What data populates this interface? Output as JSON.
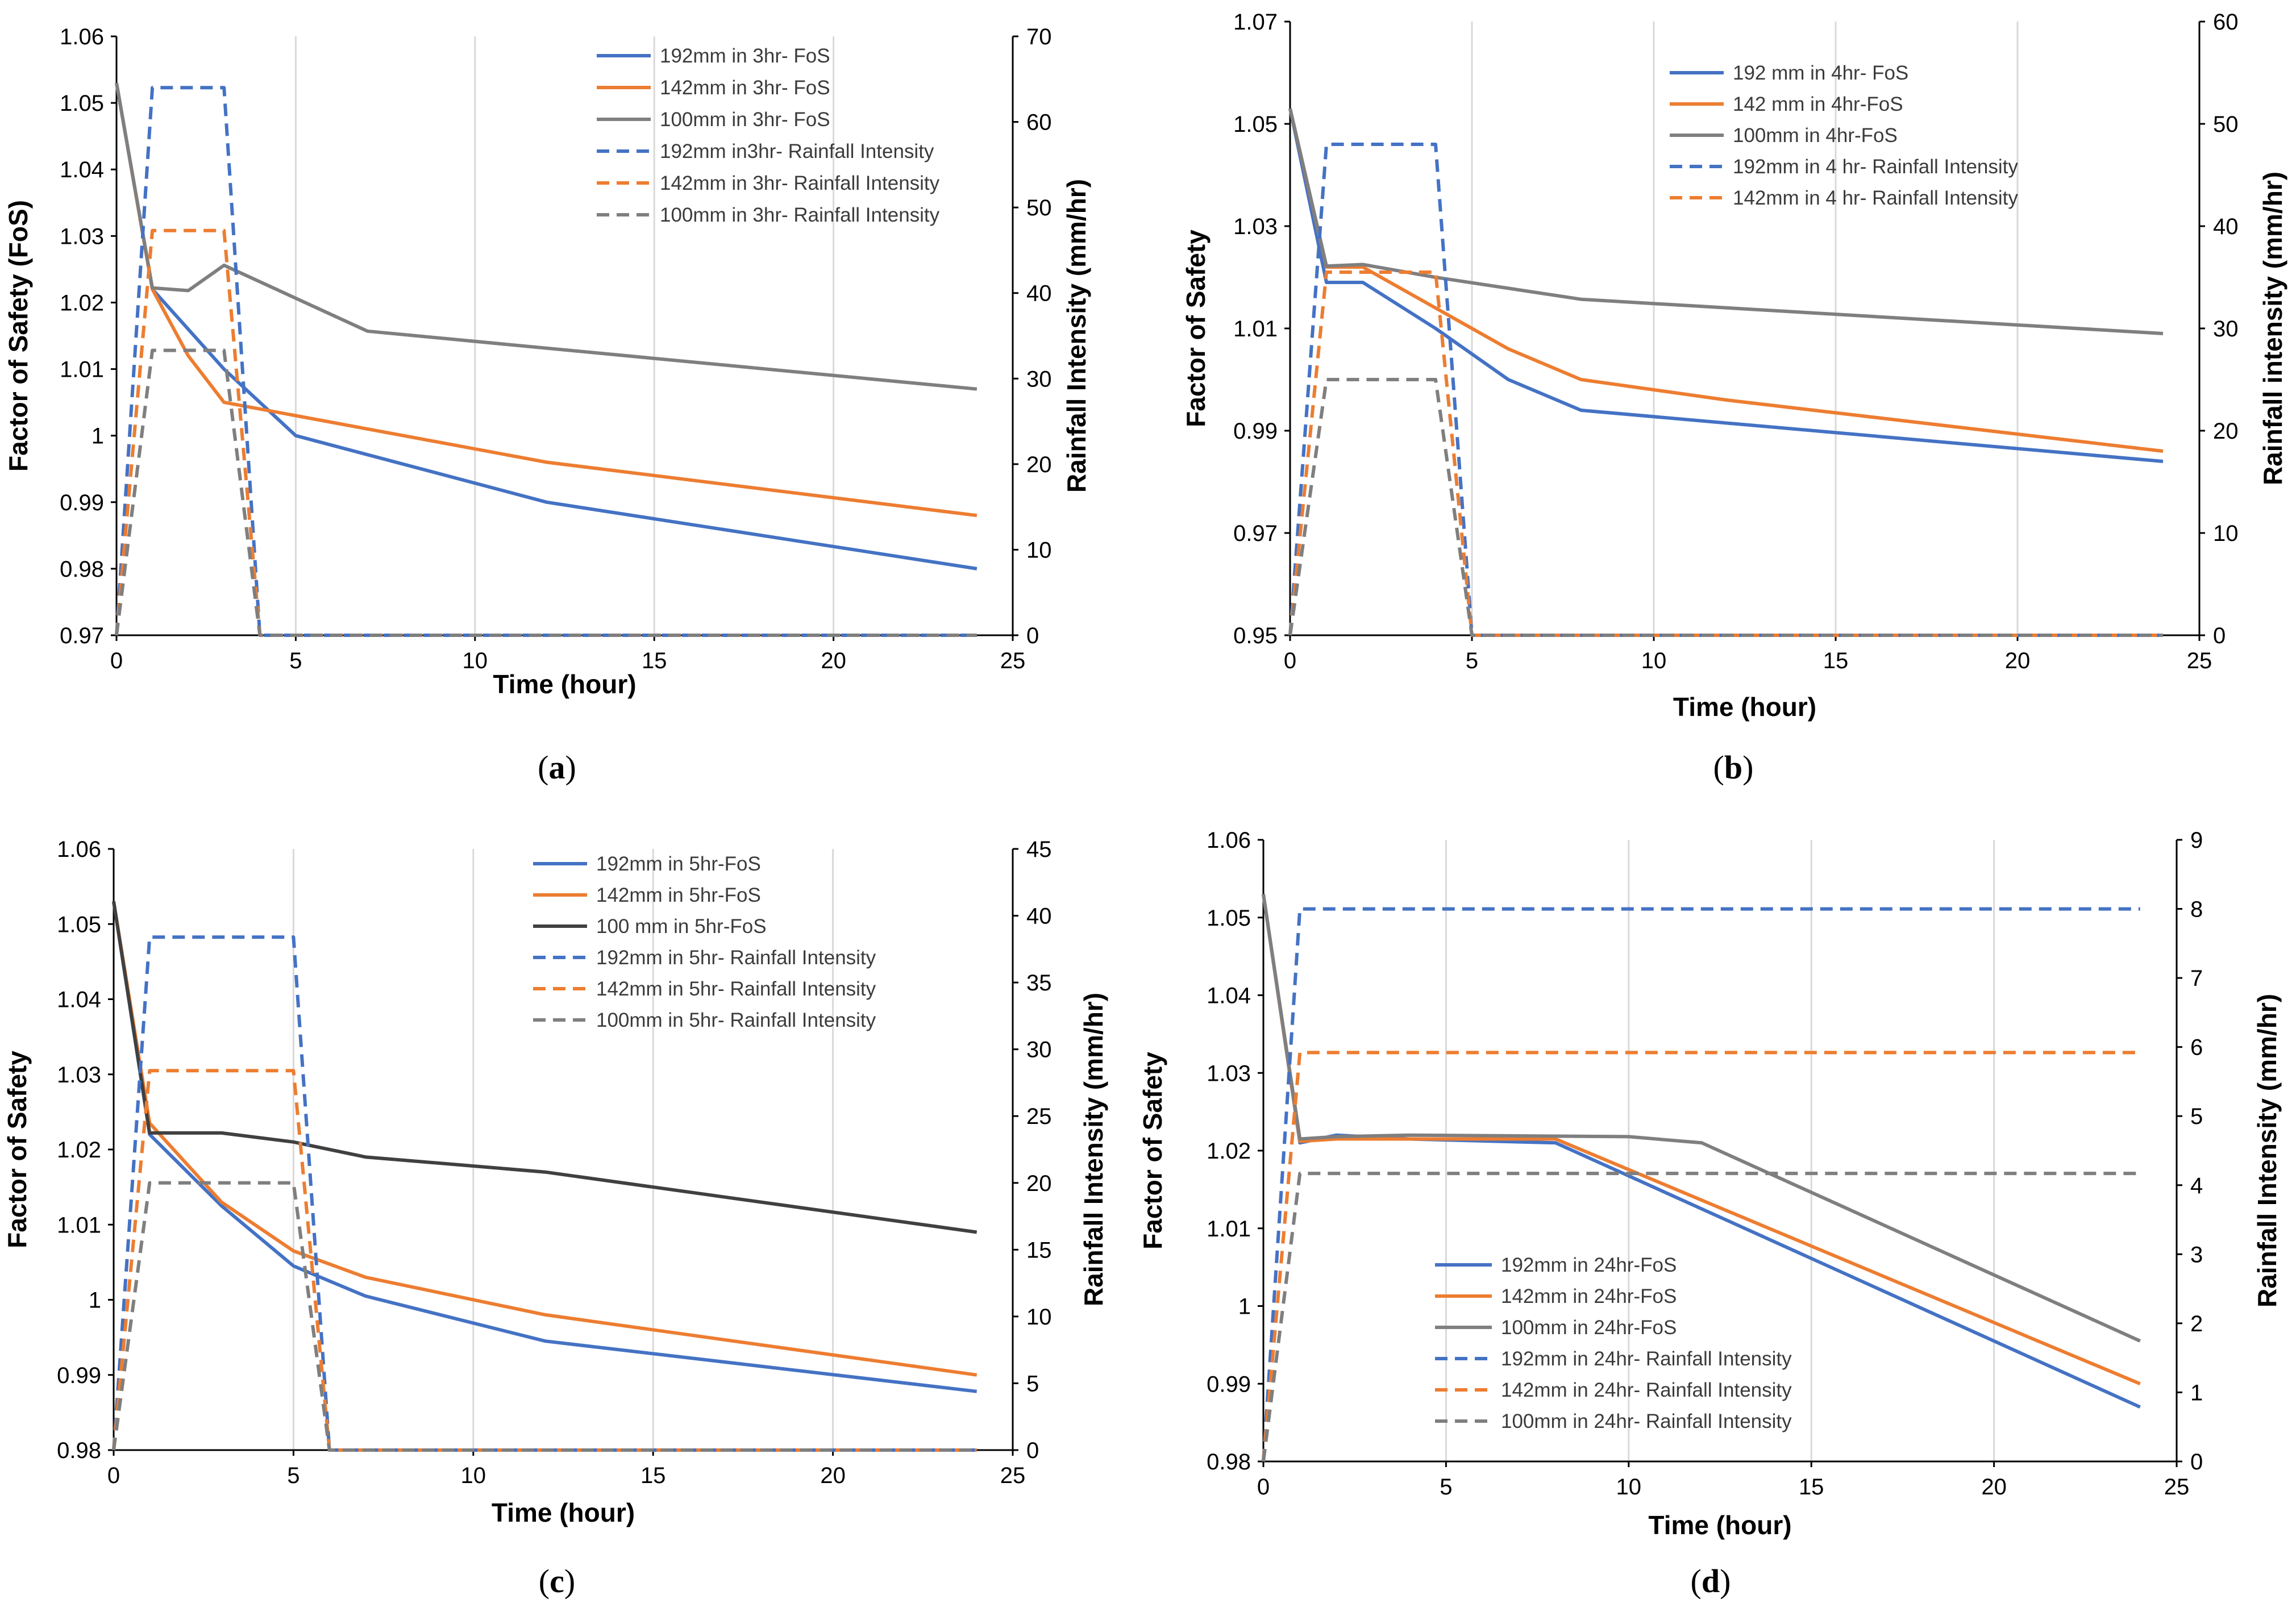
{
  "figure": {
    "panels_note": "Four panels (a)-(d)"
  },
  "colors": {
    "s192": "#4472C4",
    "s142": "#ED7D31",
    "s100": "#7F7F7F",
    "s100_dark": "#404040",
    "grid": "#D9D9D9",
    "axis": "#000000"
  },
  "chart_data": [
    {
      "type": "line",
      "caption_letter": "a",
      "xlabel": "Time (hour)",
      "ylabel": "Factor of Safety (FoS)",
      "y2label": "Rainfall Intensity (mm/hr)",
      "xlim": [
        0,
        25
      ],
      "xticks": [
        0,
        5,
        10,
        15,
        20,
        25
      ],
      "ylim": [
        0.97,
        1.06
      ],
      "yticks": [
        0.97,
        0.98,
        0.99,
        1,
        1.01,
        1.02,
        1.03,
        1.04,
        1.05,
        1.06
      ],
      "y2lim": [
        0,
        70
      ],
      "y2ticks": [
        0,
        10,
        20,
        30,
        40,
        50,
        60,
        70
      ],
      "legend_position": "top-right",
      "series": [
        {
          "name": "192mm in 3hr- FoS",
          "axis": "left",
          "style": "solid",
          "color": "#4472C4",
          "x": [
            0,
            1,
            3,
            5,
            12,
            24
          ],
          "y": [
            1.053,
            1.022,
            1.01,
            1.0,
            0.99,
            0.98
          ]
        },
        {
          "name": "142mm in 3hr- FoS",
          "axis": "left",
          "style": "solid",
          "color": "#ED7D31",
          "x": [
            0,
            1,
            2,
            3,
            5,
            12,
            24
          ],
          "y": [
            1.053,
            1.022,
            1.012,
            1.005,
            1.003,
            0.996,
            0.988
          ]
        },
        {
          "name": "100mm in 3hr- FoS",
          "axis": "left",
          "style": "solid",
          "color": "#7F7F7F",
          "x": [
            0,
            1,
            2,
            3,
            7,
            24
          ],
          "y": [
            1.053,
            1.0222,
            1.0218,
            1.0256,
            1.0157,
            1.007
          ]
        },
        {
          "name": "192mm in3hr- Rainfall Intensity",
          "axis": "right",
          "style": "dashed",
          "color": "#4472C4",
          "x": [
            0,
            1,
            3,
            4,
            24
          ],
          "y": [
            0,
            64,
            64,
            0,
            0
          ]
        },
        {
          "name": "142mm in 3hr- Rainfall Intensity",
          "axis": "right",
          "style": "dashed",
          "color": "#ED7D31",
          "x": [
            0,
            1,
            3,
            4,
            24
          ],
          "y": [
            0,
            47.3,
            47.3,
            0,
            0
          ]
        },
        {
          "name": "100mm in 3hr- Rainfall Intensity",
          "axis": "right",
          "style": "dashed",
          "color": "#7F7F7F",
          "x": [
            0,
            1,
            3,
            4,
            24
          ],
          "y": [
            0,
            33.3,
            33.3,
            0,
            0
          ]
        }
      ]
    },
    {
      "type": "line",
      "caption_letter": "b",
      "xlabel": "Time (hour)",
      "ylabel": "Factor of Safety",
      "y2label": "Rainfall intensity (mm/hr)",
      "xlim": [
        0,
        25
      ],
      "xticks": [
        0,
        5,
        10,
        15,
        20,
        25
      ],
      "ylim": [
        0.95,
        1.07
      ],
      "yticks": [
        0.95,
        0.97,
        0.99,
        1.01,
        1.03,
        1.05,
        1.07
      ],
      "y2lim": [
        0,
        60
      ],
      "y2ticks": [
        0,
        10,
        20,
        30,
        40,
        50,
        60
      ],
      "legend_position": "top-right",
      "series": [
        {
          "name": "192 mm in 4hr- FoS",
          "axis": "left",
          "style": "solid",
          "color": "#4472C4",
          "x": [
            0,
            1,
            2,
            4,
            6,
            8,
            24
          ],
          "y": [
            1.053,
            1.019,
            1.019,
            1.01,
            1.0,
            0.994,
            0.984
          ]
        },
        {
          "name": "142 mm in 4hr-FoS",
          "axis": "left",
          "style": "solid",
          "color": "#ED7D31",
          "x": [
            0,
            1,
            2,
            4,
            6,
            8,
            12,
            24
          ],
          "y": [
            1.053,
            1.022,
            1.022,
            1.014,
            1.006,
            1.0,
            0.996,
            0.986
          ]
        },
        {
          "name": "100mm in 4hr-FoS",
          "axis": "left",
          "style": "solid",
          "color": "#7F7F7F",
          "x": [
            0,
            1,
            2,
            4,
            8,
            24
          ],
          "y": [
            1.053,
            1.0222,
            1.0225,
            1.02,
            1.0157,
            1.009
          ]
        },
        {
          "name": "192mm in 4 hr- Rainfall Intensity",
          "axis": "right",
          "style": "dashed",
          "color": "#4472C4",
          "x": [
            0,
            1,
            4,
            5,
            24
          ],
          "y": [
            0,
            48,
            48,
            0,
            0
          ]
        },
        {
          "name": "142mm in 4 hr- Rainfall Intensity",
          "axis": "right",
          "style": "dashed",
          "color": "#ED7D31",
          "x": [
            0,
            1,
            4,
            5,
            24
          ],
          "y": [
            0,
            35.5,
            35.5,
            0,
            0
          ]
        },
        {
          "name": "",
          "axis": "right",
          "style": "dashed",
          "color": "#7F7F7F",
          "x": [
            0,
            1,
            4,
            5,
            24
          ],
          "y": [
            0,
            25,
            25,
            0,
            0
          ]
        }
      ]
    },
    {
      "type": "line",
      "caption_letter": "c",
      "xlabel": "Time (hour)",
      "ylabel": "Factor of Safety",
      "y2label": "Rainfall Intensity (mm/hr)",
      "xlim": [
        0,
        25
      ],
      "xticks": [
        0,
        5,
        10,
        15,
        20,
        25
      ],
      "ylim": [
        0.98,
        1.06
      ],
      "yticks": [
        0.98,
        0.99,
        1,
        1.01,
        1.02,
        1.03,
        1.04,
        1.05,
        1.06
      ],
      "y2lim": [
        0,
        45
      ],
      "y2ticks": [
        0,
        5,
        10,
        15,
        20,
        25,
        30,
        35,
        40,
        45
      ],
      "legend_position": "top-right",
      "series": [
        {
          "name": "192mm in 5hr-FoS",
          "axis": "left",
          "style": "solid",
          "color": "#4472C4",
          "x": [
            0,
            1,
            3,
            5,
            7,
            12,
            24
          ],
          "y": [
            1.053,
            1.022,
            1.0125,
            1.0045,
            1.0005,
            0.9945,
            0.9878
          ]
        },
        {
          "name": "142mm in 5hr-FoS",
          "axis": "left",
          "style": "solid",
          "color": "#ED7D31",
          "x": [
            0,
            1,
            3,
            5,
            7,
            12,
            24
          ],
          "y": [
            1.053,
            1.0235,
            1.013,
            1.0065,
            1.003,
            0.998,
            0.99
          ]
        },
        {
          "name": "100 mm in 5hr-FoS",
          "axis": "left",
          "style": "solid",
          "color": "#404040",
          "x": [
            0,
            1,
            3,
            5,
            7,
            12,
            24
          ],
          "y": [
            1.053,
            1.0222,
            1.0222,
            1.021,
            1.019,
            1.017,
            1.009
          ]
        },
        {
          "name": "192mm in 5hr- Rainfall Intensity",
          "axis": "right",
          "style": "dashed",
          "color": "#4472C4",
          "x": [
            0,
            1,
            5,
            6,
            24
          ],
          "y": [
            0,
            38.4,
            38.4,
            0,
            0
          ]
        },
        {
          "name": "142mm in 5hr- Rainfall Intensity",
          "axis": "right",
          "style": "dashed",
          "color": "#ED7D31",
          "x": [
            0,
            1,
            5,
            6,
            24
          ],
          "y": [
            0,
            28.4,
            28.4,
            0,
            0
          ]
        },
        {
          "name": "100mm in 5hr- Rainfall Intensity",
          "axis": "right",
          "style": "dashed",
          "color": "#7F7F7F",
          "x": [
            0,
            1,
            5,
            6,
            24
          ],
          "y": [
            0,
            20,
            20,
            0,
            0
          ]
        }
      ]
    },
    {
      "type": "line",
      "caption_letter": "d",
      "xlabel": "Time (hour)",
      "ylabel": "Factor of Safety",
      "y2label": "Rainfall Intensity (mm/hr)",
      "xlim": [
        0,
        25
      ],
      "xticks": [
        0,
        5,
        10,
        15,
        20,
        25
      ],
      "ylim": [
        0.98,
        1.06
      ],
      "yticks": [
        0.98,
        0.99,
        1,
        1.01,
        1.02,
        1.03,
        1.04,
        1.05,
        1.06
      ],
      "y2lim": [
        0,
        9
      ],
      "y2ticks": [
        0,
        1,
        2,
        3,
        4,
        5,
        6,
        7,
        8,
        9
      ],
      "legend_position": "bottom-center",
      "series": [
        {
          "name": "192mm in 24hr-FoS",
          "axis": "left",
          "style": "solid",
          "color": "#4472C4",
          "x": [
            0,
            1,
            2,
            4,
            8,
            24
          ],
          "y": [
            1.053,
            1.021,
            1.022,
            1.0215,
            1.021,
            0.987
          ]
        },
        {
          "name": "142mm in 24hr-FoS",
          "axis": "left",
          "style": "solid",
          "color": "#ED7D31",
          "x": [
            0,
            1,
            2,
            4,
            8,
            24
          ],
          "y": [
            1.053,
            1.0212,
            1.0215,
            1.0215,
            1.0215,
            0.99
          ]
        },
        {
          "name": "100mm in 24hr-FoS",
          "axis": "left",
          "style": "solid",
          "color": "#7F7F7F",
          "x": [
            0,
            1,
            2,
            4,
            10,
            12,
            24
          ],
          "y": [
            1.053,
            1.0215,
            1.0218,
            1.022,
            1.0218,
            1.021,
            0.9955
          ]
        },
        {
          "name": "192mm in 24hr- Rainfall Intensity",
          "axis": "right",
          "style": "dashed",
          "color": "#4472C4",
          "x": [
            0,
            1,
            24
          ],
          "y": [
            0,
            8,
            8
          ]
        },
        {
          "name": "142mm in 24hr- Rainfall Intensity",
          "axis": "right",
          "style": "dashed",
          "color": "#ED7D31",
          "x": [
            0,
            1,
            24
          ],
          "y": [
            0,
            5.92,
            5.92
          ]
        },
        {
          "name": "100mm in 24hr- Rainfall Intensity",
          "axis": "right",
          "style": "dashed",
          "color": "#7F7F7F",
          "x": [
            0,
            1,
            24
          ],
          "y": [
            0,
            4.17,
            4.17
          ]
        }
      ]
    }
  ]
}
